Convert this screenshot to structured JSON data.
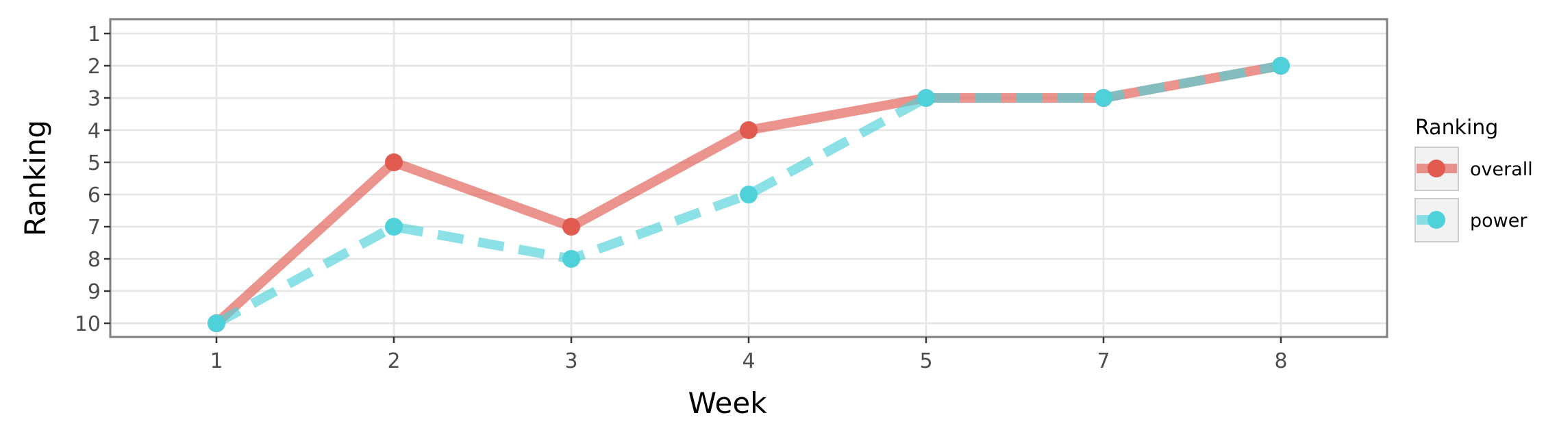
{
  "chart_data": {
    "type": "line",
    "xlabel": "Week",
    "ylabel": "Ranking",
    "categories": [
      "1",
      "2",
      "3",
      "4",
      "5",
      "7",
      "8"
    ],
    "ylim": [
      1,
      10
    ],
    "y_reversed": true,
    "yticks": [
      "1",
      "2",
      "3",
      "4",
      "5",
      "6",
      "7",
      "8",
      "9",
      "10"
    ],
    "grid": true,
    "legend": {
      "title": "Ranking",
      "position": "right"
    },
    "series": [
      {
        "name": "overall",
        "values": [
          10,
          5,
          7,
          4,
          3,
          3,
          2
        ],
        "color": "#e05a50",
        "line_style": "solid"
      },
      {
        "name": "power",
        "values": [
          10,
          7,
          8,
          6,
          3,
          3,
          2
        ],
        "color": "#4fd1d9",
        "line_style": "dashed"
      }
    ]
  }
}
